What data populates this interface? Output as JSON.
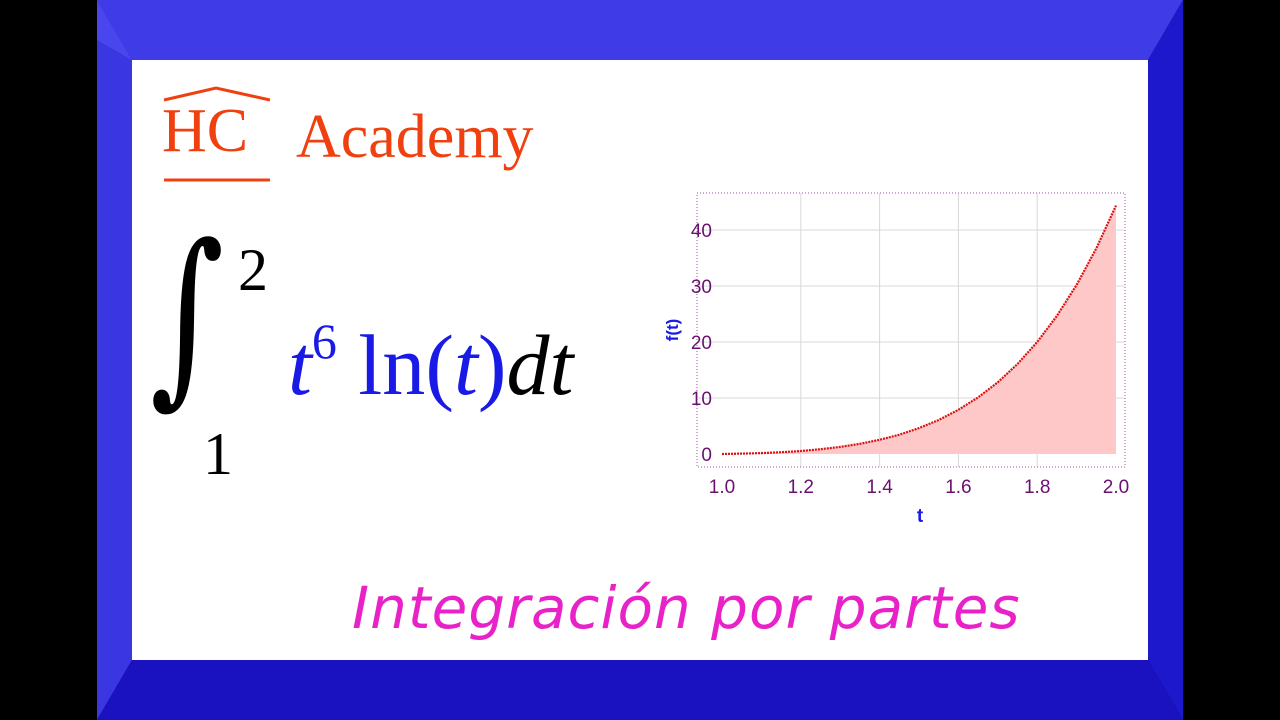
{
  "logo": {
    "hc": "HC",
    "name": "Academy",
    "color": "#f04010"
  },
  "integral": {
    "lower": "1",
    "upper": "2",
    "integrand_base": "t",
    "integrand_exp": "6",
    "integrand_fn": "ln",
    "integrand_arg": "t",
    "differential_d": "d",
    "differential_var": "t"
  },
  "subtitle": "Integración por partes",
  "colors": {
    "frame_top": "#3f3be6",
    "frame_bottom": "#1a12c0",
    "subtitle": "#e822c8",
    "expression": "#1a1ae6"
  },
  "chart_data": {
    "type": "area",
    "xlabel": "t",
    "ylabel": "f(t)",
    "xlim": [
      1.0,
      2.0
    ],
    "ylim": [
      -2.5,
      46
    ],
    "xticks": [
      "1.0",
      "1.2",
      "1.4",
      "1.6",
      "1.8",
      "2.0"
    ],
    "yticks": [
      "0",
      "10",
      "20",
      "30",
      "40"
    ],
    "grid": true,
    "line_color": "#dd1111",
    "fill_color": "#ffc8c8",
    "x": [
      1.0,
      1.05,
      1.1,
      1.15,
      1.2,
      1.25,
      1.3,
      1.35,
      1.4,
      1.45,
      1.5,
      1.55,
      1.6,
      1.65,
      1.7,
      1.75,
      1.8,
      1.85,
      1.9,
      1.95,
      2.0
    ],
    "y": [
      0,
      0.065,
      0.169,
      0.323,
      0.544,
      0.851,
      1.266,
      1.817,
      2.534,
      3.453,
      4.619,
      6.077,
      7.885,
      10.105,
      12.808,
      16.074,
      19.992,
      24.662,
      30.197,
      36.718,
      44.361
    ]
  }
}
